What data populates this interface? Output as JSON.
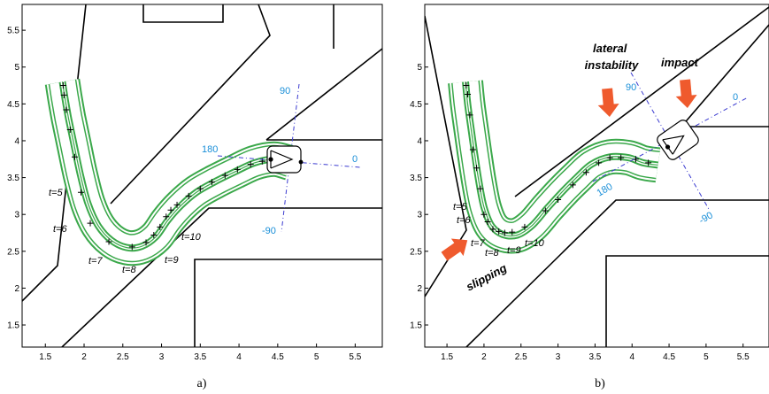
{
  "chart_data": [
    {
      "type": "line",
      "caption": "a)",
      "xlim": [
        1.2,
        5.85
      ],
      "ylim": [
        1.2,
        5.85
      ],
      "x_ticks": [
        "1.5",
        "2",
        "2.5",
        "3",
        "3.5",
        "4",
        "4.5",
        "5",
        "5.5"
      ],
      "y_ticks": [
        "1.5",
        "2",
        "2.5",
        "3",
        "3.5",
        "4",
        "4.5",
        "5",
        "5.5"
      ],
      "time_labels": [
        "t=5",
        "t=6",
        "t=7",
        "t=8",
        "t=9",
        "t=10"
      ],
      "angle_labels": [
        "180",
        "90",
        "0",
        "-90"
      ],
      "path": [
        [
          1.72,
          4.8
        ],
        [
          1.75,
          4.6
        ],
        [
          1.8,
          4.3
        ],
        [
          1.87,
          3.95
        ],
        [
          1.95,
          3.55
        ],
        [
          2.05,
          3.15
        ],
        [
          2.18,
          2.85
        ],
        [
          2.35,
          2.65
        ],
        [
          2.55,
          2.55
        ],
        [
          2.75,
          2.57
        ],
        [
          2.93,
          2.7
        ],
        [
          3.08,
          2.92
        ],
        [
          3.25,
          3.12
        ],
        [
          3.45,
          3.3
        ],
        [
          3.7,
          3.45
        ],
        [
          3.95,
          3.58
        ],
        [
          4.2,
          3.7
        ],
        [
          4.45,
          3.75
        ],
        [
          4.65,
          3.7
        ]
      ],
      "markers": [
        [
          1.73,
          4.75
        ],
        [
          1.74,
          4.62
        ],
        [
          1.77,
          4.42
        ],
        [
          1.82,
          4.15
        ],
        [
          1.88,
          3.78
        ],
        [
          1.96,
          3.3
        ],
        [
          2.08,
          2.88
        ],
        [
          2.32,
          2.63
        ],
        [
          2.62,
          2.56
        ],
        [
          2.8,
          2.62
        ],
        [
          2.9,
          2.72
        ],
        [
          2.98,
          2.83
        ],
        [
          3.06,
          2.97
        ],
        [
          3.12,
          3.06
        ],
        [
          3.2,
          3.13
        ],
        [
          3.35,
          3.25
        ],
        [
          3.5,
          3.35
        ],
        [
          3.65,
          3.44
        ],
        [
          3.82,
          3.53
        ],
        [
          3.98,
          3.61
        ],
        [
          4.15,
          3.68
        ],
        [
          4.3,
          3.72
        ],
        [
          4.42,
          3.75
        ],
        [
          4.55,
          3.73
        ]
      ],
      "vehicle_center": [
        4.75,
        3.68
      ]
    },
    {
      "type": "line",
      "caption": "b)",
      "xlim": [
        1.2,
        5.85
      ],
      "ylim": [
        1.2,
        5.85
      ],
      "x_ticks": [
        "1.5",
        "2",
        "2.5",
        "3",
        "3.5",
        "4",
        "4.5",
        "5",
        "5.5"
      ],
      "y_ticks": [
        "1.5",
        "2",
        "2.5",
        "3",
        "3.5",
        "4",
        "4.5",
        "5"
      ],
      "time_labels": [
        "t=5",
        "t=6",
        "t=7",
        "t=8",
        "t=9",
        "t=10"
      ],
      "angle_labels": [
        "90",
        "0",
        "180",
        "-90"
      ],
      "annotations": [
        "lateral\ninstability",
        "impact",
        "slipping"
      ],
      "path": [
        [
          1.75,
          4.8
        ],
        [
          1.78,
          4.5
        ],
        [
          1.82,
          4.2
        ],
        [
          1.87,
          3.85
        ],
        [
          1.93,
          3.45
        ],
        [
          2.0,
          3.1
        ],
        [
          2.1,
          2.85
        ],
        [
          2.25,
          2.73
        ],
        [
          2.45,
          2.72
        ],
        [
          2.65,
          2.85
        ],
        [
          2.85,
          3.08
        ],
        [
          3.05,
          3.3
        ],
        [
          3.25,
          3.5
        ],
        [
          3.45,
          3.68
        ],
        [
          3.7,
          3.78
        ],
        [
          3.95,
          3.77
        ],
        [
          4.15,
          3.7
        ],
        [
          4.35,
          3.67
        ]
      ],
      "markers": [
        [
          1.76,
          4.75
        ],
        [
          1.78,
          4.63
        ],
        [
          1.81,
          4.35
        ],
        [
          1.85,
          3.88
        ],
        [
          1.9,
          3.63
        ],
        [
          1.95,
          3.35
        ],
        [
          2.0,
          3.0
        ],
        [
          2.05,
          2.9
        ],
        [
          2.12,
          2.8
        ],
        [
          2.2,
          2.77
        ],
        [
          2.28,
          2.75
        ],
        [
          2.38,
          2.76
        ],
        [
          2.55,
          2.83
        ],
        [
          2.83,
          3.05
        ],
        [
          3.0,
          3.2
        ],
        [
          3.2,
          3.4
        ],
        [
          3.38,
          3.57
        ],
        [
          3.55,
          3.7
        ],
        [
          3.7,
          3.77
        ],
        [
          3.85,
          3.77
        ],
        [
          4.05,
          3.75
        ],
        [
          4.22,
          3.7
        ]
      ],
      "vehicle_center": [
        4.47,
        3.75
      ]
    }
  ]
}
